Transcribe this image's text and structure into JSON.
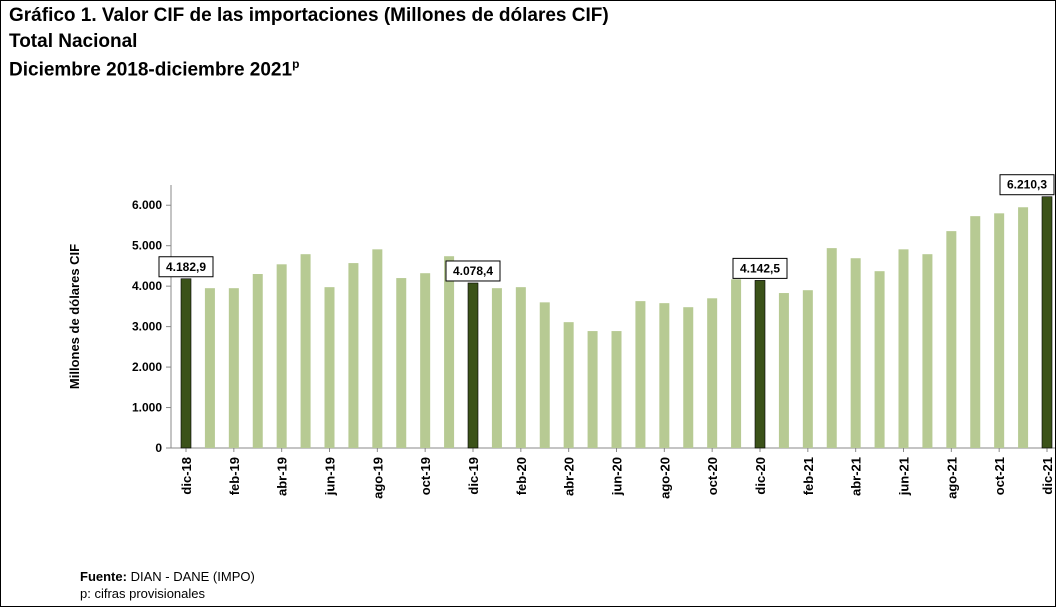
{
  "title": "Gráfico 1. Valor CIF de las importaciones (Millones de dólares CIF)",
  "subtitle": "Total Nacional",
  "period": "Diciembre 2018-diciembre 2021",
  "period_superscript": "p",
  "source_label": "Fuente:",
  "source": "DIAN - DANE (IMPO)",
  "note": "p: cifras provisionales",
  "chart_data": {
    "type": "bar",
    "y_label": "Millones de dólares CIF",
    "categories": [
      "dic-18",
      null,
      "feb-19",
      null,
      "abr-19",
      null,
      "jun-19",
      null,
      "ago-19",
      null,
      "oct-19",
      null,
      "dic-19",
      null,
      "feb-20",
      null,
      "abr-20",
      null,
      "jun-20",
      null,
      "ago-20",
      null,
      "oct-20",
      null,
      "dic-20",
      null,
      "feb-21",
      null,
      "abr-21",
      null,
      "jun-21",
      null,
      "ago-21",
      null,
      "oct-21",
      null,
      "dic-21"
    ],
    "values": [
      4182.9,
      3950,
      3950,
      4300,
      4540,
      4790,
      3975,
      4570,
      4910,
      4200,
      4320,
      4740,
      4078.4,
      3950,
      3975,
      3600,
      3110,
      2890,
      2890,
      3630,
      3580,
      3480,
      3700,
      4170,
      4142.5,
      3830,
      3900,
      4940,
      4690,
      4370,
      4910,
      4790,
      5360,
      5730,
      5800,
      5950,
      6210.3
    ],
    "value_labels": [
      "4.182,9",
      null,
      null,
      null,
      null,
      null,
      null,
      null,
      null,
      null,
      null,
      null,
      "4.078,4",
      null,
      null,
      null,
      null,
      null,
      null,
      null,
      null,
      null,
      null,
      null,
      "4.142,5",
      null,
      null,
      null,
      null,
      null,
      null,
      null,
      null,
      null,
      null,
      null,
      "6.210,3"
    ],
    "color": "#b7ca93",
    "highlight_color": "#3b5219",
    "ylim": [
      0,
      6500
    ],
    "yticks": [
      0,
      {
        "value": 1000,
        "label": "1.000"
      },
      {
        "value": 2000,
        "label": "2.000"
      },
      {
        "value": 3000,
        "label": "3.000"
      },
      {
        "value": 4000,
        "label": "4.000"
      },
      {
        "value": 5000,
        "label": "5.000"
      },
      {
        "value": 6000,
        "label": "6.000"
      }
    ]
  }
}
